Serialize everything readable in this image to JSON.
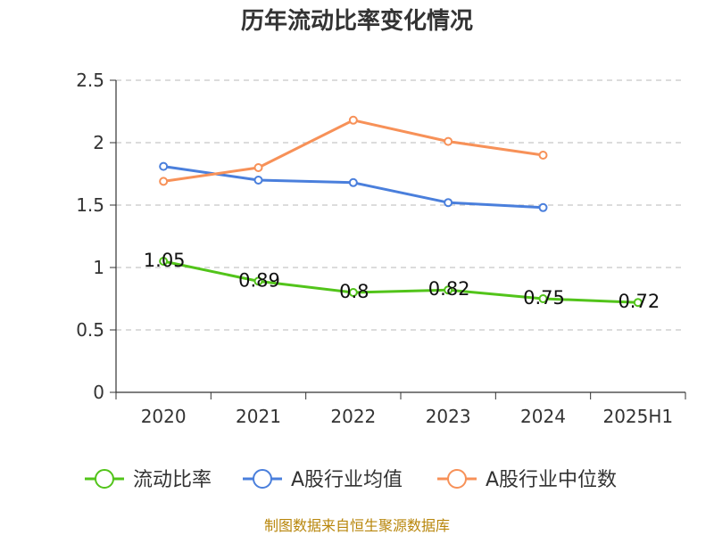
{
  "chart_data": {
    "type": "line",
    "title": "历年流动比率变化情况",
    "categories": [
      "2020",
      "2021",
      "2022",
      "2023",
      "2024",
      "2025H1"
    ],
    "yticks": [
      "0",
      "0.5",
      "1",
      "1.5",
      "2",
      "2.5"
    ],
    "ylim": [
      0,
      2.5
    ],
    "xlabel": "",
    "ylabel": "",
    "grid": true,
    "legend_position": "bottom",
    "series": [
      {
        "name": "流动比率",
        "color": "#52c41a",
        "values": [
          1.05,
          0.89,
          0.8,
          0.82,
          0.75,
          0.72
        ],
        "labels": [
          "1.05",
          "0.89",
          "0.8",
          "0.82",
          "0.75",
          "0.72"
        ],
        "show_labels": true
      },
      {
        "name": "A股行业均值",
        "color": "#4a7fdc",
        "values": [
          1.81,
          1.7,
          1.68,
          1.52,
          1.48,
          null
        ],
        "show_labels": false
      },
      {
        "name": "A股行业中位数",
        "color": "#f79158",
        "values": [
          1.69,
          1.8,
          2.18,
          2.01,
          1.9,
          null
        ],
        "show_labels": false
      }
    ],
    "source": "制图数据来自恒生聚源数据库"
  }
}
